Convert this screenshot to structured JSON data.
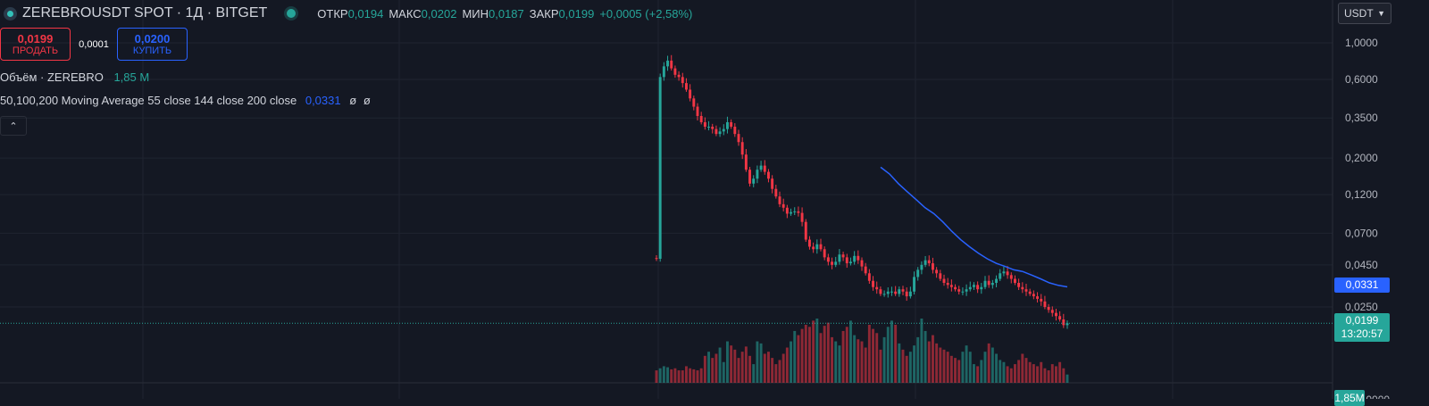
{
  "header": {
    "symbol": "ZEREBROUSDT SPOT · 1Д · BITGET",
    "ohlc": {
      "open_label": "ОТКР",
      "open": "0,0194",
      "high_label": "МАКС",
      "high": "0,0202",
      "low_label": "МИН",
      "low": "0,0187",
      "close_label": "ЗАКР",
      "close": "0,0199",
      "change": "+0,0005 (+2,58%)"
    }
  },
  "trade": {
    "sell_price": "0,0199",
    "sell_label": "ПРОДАТЬ",
    "spread": "0,0001",
    "buy_price": "0,0200",
    "buy_label": "КУПИТЬ"
  },
  "legend": {
    "volume_title": "Объём · ZEREBRO",
    "volume_value": "1,85 M",
    "ma_title": "50,100,200 Moving Average 55 close 144 close 200 close",
    "ma_value": "0,0331",
    "ma_empty1": "ø",
    "ma_empty2": "ø"
  },
  "price_scale": {
    "currency": "USDT",
    "ticks": [
      "1,0000",
      "0,6000",
      "0,3500",
      "0,2000",
      "0,1200",
      "0,0700",
      "0,0450",
      "0,0250"
    ],
    "bottom_tick": "100,0000",
    "ma_badge": "0,0331",
    "price_badge": "0,0199",
    "countdown": "13:20:57",
    "volume_badge": "1,85M"
  },
  "colors": {
    "up": "#26a69a",
    "down": "#f23645",
    "ma": "#2962ff",
    "background": "#141823"
  },
  "chart_data": {
    "type": "candlestick",
    "scale": "log",
    "ylim": [
      0.018,
      1.0
    ],
    "series": [
      {
        "name": "price",
        "values": [
          0.049,
          0.62,
          0.72,
          0.78,
          0.7,
          0.64,
          0.62,
          0.57,
          0.52,
          0.46,
          0.41,
          0.36,
          0.33,
          0.31,
          0.31,
          0.3,
          0.28,
          0.29,
          0.3,
          0.33,
          0.31,
          0.28,
          0.25,
          0.21,
          0.17,
          0.14,
          0.15,
          0.17,
          0.18,
          0.165,
          0.15,
          0.13,
          0.117,
          0.105,
          0.1,
          0.092,
          0.094,
          0.095,
          0.093,
          0.082,
          0.064,
          0.058,
          0.056,
          0.06,
          0.056,
          0.05,
          0.047,
          0.045,
          0.047,
          0.052,
          0.05,
          0.046,
          0.047,
          0.051,
          0.048,
          0.044,
          0.04,
          0.036,
          0.033,
          0.032,
          0.03,
          0.03,
          0.031,
          0.031,
          0.03,
          0.032,
          0.031,
          0.029,
          0.031,
          0.038,
          0.042,
          0.045,
          0.048,
          0.046,
          0.042,
          0.04,
          0.037,
          0.035,
          0.034,
          0.033,
          0.032,
          0.031,
          0.031,
          0.032,
          0.033,
          0.034,
          0.032,
          0.033,
          0.036,
          0.034,
          0.035,
          0.037,
          0.04,
          0.041,
          0.039,
          0.037,
          0.035,
          0.033,
          0.032,
          0.031,
          0.03,
          0.029,
          0.028,
          0.027,
          0.025,
          0.024,
          0.023,
          0.022,
          0.021,
          0.0194,
          0.0199
        ]
      },
      {
        "name": "volume",
        "values": [
          12,
          14,
          16,
          15,
          13,
          14,
          12,
          12,
          16,
          14,
          13,
          12,
          14,
          26,
          30,
          24,
          28,
          34,
          20,
          40,
          36,
          32,
          24,
          30,
          35,
          26,
          18,
          40,
          38,
          28,
          30,
          24,
          18,
          22,
          28,
          34,
          40,
          50,
          46,
          52,
          56,
          54,
          60,
          62,
          48,
          55,
          58,
          44,
          40,
          36,
          50,
          54,
          60,
          46,
          42,
          40,
          34,
          56,
          52,
          48,
          32,
          44,
          54,
          60,
          56,
          38,
          32,
          26,
          30,
          36,
          44,
          62,
          50,
          40,
          46,
          38,
          34,
          32,
          30,
          26,
          24,
          22,
          30,
          36,
          30,
          18,
          16,
          22,
          30,
          38,
          34,
          28,
          22,
          20,
          16,
          14,
          18,
          22,
          28,
          24,
          20,
          18,
          16,
          20,
          14,
          12,
          18,
          16,
          20,
          14,
          8
        ]
      }
    ],
    "moving_average": {
      "name": "55",
      "values": [
        0.176,
        0.16,
        0.14,
        0.125,
        0.112,
        0.1,
        0.092,
        0.082,
        0.072,
        0.064,
        0.058,
        0.053,
        0.049,
        0.046,
        0.044,
        0.042,
        0.041,
        0.039,
        0.037,
        0.035,
        0.0338,
        0.0331
      ]
    }
  }
}
